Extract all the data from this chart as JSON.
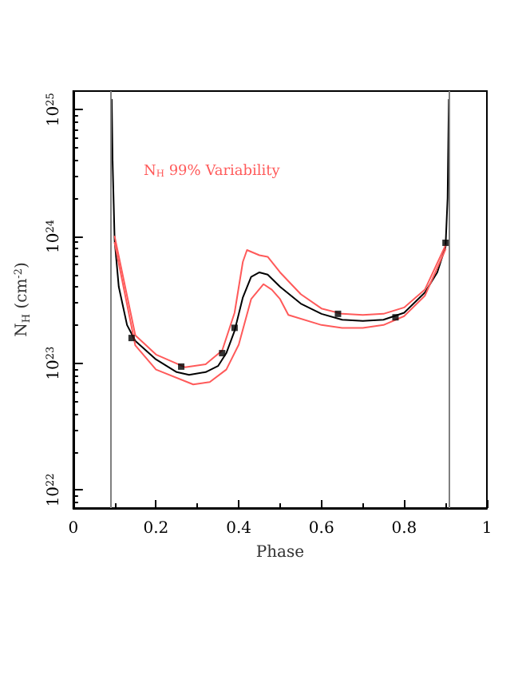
{
  "chart_data": {
    "type": "line",
    "xlabel": "Phase",
    "ylabel": "N$_{H}$ (cm$^{-2}$)",
    "log": "y",
    "grid": false,
    "line_style": "solid",
    "xlim": [
      0,
      1
    ],
    "xticks": [
      0,
      0.2,
      0.4,
      0.6,
      0.8,
      1
    ],
    "ylim": [
      7.2e+21,
      1.4e+25
    ],
    "yticks": [
      {
        "value": 1e+22,
        "label": "10$^{22}$"
      },
      {
        "value": 1e+23,
        "label": "10$^{23}$"
      },
      {
        "value": 1e+24,
        "label": "10$^{24}$"
      },
      {
        "value": 1e+25,
        "label": "10$^{25}$"
      }
    ],
    "ref_lines": [
      {
        "axis": "x",
        "value": 0.09,
        "color": "#808080"
      },
      {
        "axis": "x",
        "value": 0.91,
        "color": "#808080"
      }
    ],
    "series": [
      {
        "color": "#000000",
        "marker": "none",
        "x": [
          0.093,
          0.095,
          0.1,
          0.11,
          0.13,
          0.15,
          0.2,
          0.25,
          0.28,
          0.32,
          0.35,
          0.37,
          0.39,
          0.41,
          0.43,
          0.45,
          0.47,
          0.5,
          0.55,
          0.6,
          0.65,
          0.7,
          0.75,
          0.8,
          0.85,
          0.88,
          0.9,
          0.905,
          0.908
        ],
        "values": [
          1.2e+25,
          4e+24,
          9.3e+23,
          4e+23,
          2e+23,
          1.5e+23,
          1.07e+23,
          8.5e+22,
          8.1e+22,
          8.5e+22,
          9.5e+22,
          1.2e+23,
          1.8e+23,
          3.3e+23,
          4.8e+23,
          5.2e+23,
          5e+23,
          4e+23,
          2.95e+23,
          2.45e+23,
          2.2e+23,
          2.15e+23,
          2.2e+23,
          2.5e+23,
          3.6e+23,
          5.2e+23,
          8.3e+23,
          2e+24,
          1.2e+25
        ]
      },
      {
        "name": "N$_{H}$ 99% Variability",
        "color": "#ff5a5a",
        "marker": "none",
        "x": [
          0.1,
          0.15,
          0.2,
          0.27,
          0.32,
          0.36,
          0.39,
          0.41,
          0.42,
          0.45,
          0.47,
          0.5,
          0.55,
          0.6,
          0.65,
          0.7,
          0.75,
          0.8,
          0.85,
          0.9
        ],
        "values": [
          1e+24,
          1.66e+23,
          1.17e+23,
          9.3e+22,
          9.8e+22,
          1.26e+23,
          2.5e+23,
          6.3e+23,
          7.8e+23,
          7.1e+23,
          6.9e+23,
          5.2e+23,
          3.5e+23,
          2.7e+23,
          2.45e+23,
          2.4e+23,
          2.45e+23,
          2.75e+23,
          3.8e+23,
          8.5e+23
        ]
      },
      {
        "color": "#ff5a5a",
        "marker": "none",
        "x": [
          0.1,
          0.15,
          0.2,
          0.29,
          0.33,
          0.37,
          0.4,
          0.43,
          0.46,
          0.48,
          0.5,
          0.52,
          0.6,
          0.65,
          0.7,
          0.75,
          0.8,
          0.85,
          0.9
        ],
        "values": [
          8.9e+23,
          1.38e+23,
          8.9e+22,
          6.8e+22,
          7.1e+22,
          8.9e+22,
          1.4e+23,
          3.2e+23,
          4.2e+23,
          3.8e+23,
          3.2e+23,
          2.4e+23,
          2e+23,
          1.9e+23,
          1.9e+23,
          2e+23,
          2.35e+23,
          3.4e+23,
          7.9e+23
        ]
      },
      {
        "type": "scatter",
        "color": "#000000",
        "marker": "square",
        "x": [
          0.141,
          0.261,
          0.36,
          0.39,
          0.64,
          0.779,
          0.9
        ],
        "values": [
          1.58e+23,
          9.4e+22,
          1.2e+23,
          1.9e+23,
          2.45e+23,
          2.3e+23,
          8.9e+23
        ]
      }
    ]
  }
}
